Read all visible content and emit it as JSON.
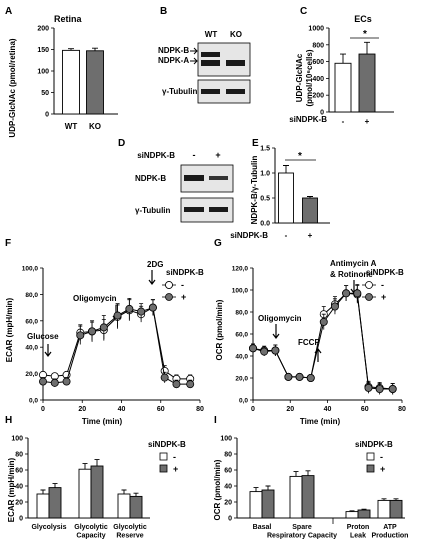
{
  "colors": {
    "white_bar": "#ffffff",
    "gray_bar": "#6e6e6e",
    "band": "#1a1a1a",
    "open_circle": "#ffffff",
    "filled_circle": "#6e6e6e"
  },
  "panels": {
    "A": {
      "letter": "A",
      "title": "Retina"
    },
    "B": {
      "letter": "B",
      "lane1": "WT",
      "lane2": "KO",
      "band_top": "NDPK-B",
      "band_mid": "NDPK-A",
      "band_bottom": "γ-Tubulin"
    },
    "C": {
      "letter": "C",
      "title": "ECs",
      "sig": "*",
      "group": "siNDPK-B"
    },
    "D": {
      "letter": "D",
      "group": "siNDPK-B",
      "lane1": "-",
      "lane2": "+",
      "band_top": "NDPK-B",
      "band_bottom": "γ-Tubulin"
    },
    "E": {
      "letter": "E",
      "sig": "*",
      "group": "siNDPK-B"
    },
    "F": {
      "letter": "F",
      "ann_glucose": "Glucose",
      "ann_oligo": "Oligomycin",
      "ann_2dg": "2DG",
      "legend_title": "siNDPK-B",
      "legend_minus": "-",
      "legend_plus": "+"
    },
    "G": {
      "letter": "G",
      "ann_oligo": "Oligomycin",
      "ann_fccp": "FCCP",
      "ann_aa1": "Antimycin A",
      "ann_aa2": "& Rotinone",
      "legend_title": "siNDPK-B",
      "legend_minus": "-",
      "legend_plus": "+"
    },
    "H": {
      "letter": "H",
      "legend_title": "siNDPK-B",
      "legend_minus": "-",
      "legend_plus": "+"
    },
    "I": {
      "letter": "I",
      "legend_title": "siNDPK-B",
      "legend_minus": "-",
      "legend_plus": "+"
    }
  },
  "chart_data": [
    {
      "id": "A",
      "type": "bar",
      "title": "Retina",
      "ylabel": "UDP-GlcNAc (pmol/retina)",
      "categories": [
        "WT",
        "KO"
      ],
      "values": [
        148,
        147
      ],
      "errors": [
        4,
        6
      ],
      "ylim": [
        0,
        200
      ],
      "yticks": [
        "0",
        "50",
        "100",
        "150",
        "200"
      ]
    },
    {
      "id": "C",
      "type": "bar",
      "title": "ECs",
      "ylabel": "UDP-GlcNAc",
      "ylabel2": "(pmol/10⁶cells)",
      "categories": [
        "-",
        "+"
      ],
      "values": [
        580,
        690
      ],
      "errors": [
        110,
        140
      ],
      "ylim": [
        0,
        1000
      ],
      "yticks": [
        "0",
        "200",
        "400",
        "600",
        "800",
        "1000"
      ]
    },
    {
      "id": "E",
      "type": "bar",
      "ylabel": "NDPK-B/γ-Tubulin",
      "categories": [
        "-",
        "+"
      ],
      "values": [
        1.0,
        0.5
      ],
      "errors": [
        0.15,
        0.03
      ],
      "ylim": [
        0,
        1.5
      ],
      "yticks": [
        "0.0",
        "0.5",
        "1.0",
        "1.5"
      ]
    },
    {
      "id": "F",
      "type": "line",
      "xlabel": "Time (min)",
      "ylabel": "ECAR (mpH/min)",
      "xlim": [
        0,
        80
      ],
      "ylim": [
        0,
        100
      ],
      "xticks": [
        "0",
        "20",
        "40",
        "60",
        "80"
      ],
      "yticks": [
        "0,0",
        "20,0",
        "40,0",
        "60,0",
        "80,0",
        "100,0"
      ],
      "series": [
        {
          "name": "-",
          "x": [
            0,
            6,
            12,
            19,
            25,
            31,
            38,
            44,
            50,
            56,
            62,
            68,
            75
          ],
          "y": [
            19,
            18,
            19,
            51,
            52,
            53,
            63,
            68,
            65,
            70,
            22,
            16,
            16
          ],
          "err": [
            2,
            2,
            2,
            6,
            7,
            8,
            9,
            8,
            6,
            6,
            4,
            3,
            3
          ]
        },
        {
          "name": "+",
          "x": [
            0,
            6,
            12,
            19,
            25,
            31,
            38,
            44,
            50,
            56,
            62,
            68,
            75
          ],
          "y": [
            14,
            13,
            14,
            49,
            52,
            55,
            64,
            69,
            67,
            70,
            17,
            12,
            12
          ],
          "err": [
            3,
            3,
            3,
            7,
            8,
            9,
            9,
            8,
            6,
            6,
            4,
            3,
            3
          ]
        }
      ]
    },
    {
      "id": "G",
      "type": "line",
      "xlabel": "Time (min)",
      "ylabel": "OCR (pmol/min)",
      "xlim": [
        0,
        80
      ],
      "ylim": [
        0,
        120
      ],
      "xticks": [
        "0",
        "20",
        "40",
        "60",
        "80"
      ],
      "yticks": [
        "0,0",
        "20,0",
        "40,0",
        "60,0",
        "80,0",
        "100,0",
        "120,0"
      ],
      "series": [
        {
          "name": "-",
          "x": [
            0,
            6,
            12,
            19,
            25,
            31,
            38,
            44,
            50,
            56,
            62,
            68,
            75
          ],
          "y": [
            47,
            45,
            45,
            21,
            21,
            20,
            78,
            87,
            97,
            96,
            12,
            11,
            10
          ],
          "err": [
            4,
            4,
            5,
            2,
            2,
            2,
            7,
            7,
            7,
            8,
            5,
            5,
            5
          ]
        },
        {
          "name": "+",
          "x": [
            0,
            6,
            12,
            19,
            25,
            31,
            38,
            44,
            50,
            56,
            62,
            68,
            75
          ],
          "y": [
            47,
            44,
            45,
            21,
            21,
            20,
            71,
            85,
            97,
            97,
            11,
            10,
            10
          ],
          "err": [
            4,
            4,
            5,
            2,
            2,
            2,
            7,
            7,
            7,
            8,
            5,
            5,
            5
          ]
        }
      ]
    },
    {
      "id": "H",
      "type": "bar",
      "ylabel": "ECAR (mpH/min)",
      "categories": [
        "Glycolysis",
        "Glycolytic Capacity",
        "Glycolytic Reserve"
      ],
      "ylim": [
        0,
        100
      ],
      "yticks": [
        "0",
        "20",
        "40",
        "60",
        "80",
        "100"
      ],
      "series": [
        {
          "name": "-",
          "values": [
            30,
            61,
            30
          ],
          "errors": [
            5,
            7,
            5
          ]
        },
        {
          "name": "+",
          "values": [
            38,
            65,
            27
          ],
          "errors": [
            5,
            8,
            4
          ]
        }
      ]
    },
    {
      "id": "I",
      "type": "bar",
      "ylabel": "OCR (pmol/min)",
      "categories": [
        "Basal",
        "Spare Respiratory Capacity",
        "Proton Leak",
        "ATP Production"
      ],
      "ylim": [
        0,
        100
      ],
      "yticks": [
        "0",
        "20",
        "40",
        "60",
        "80",
        "100"
      ],
      "series": [
        {
          "name": "-",
          "values": [
            33,
            52,
            8,
            22
          ],
          "errors": [
            5,
            6,
            1,
            2
          ]
        },
        {
          "name": "+",
          "values": [
            35,
            53,
            10,
            22
          ],
          "errors": [
            5,
            6,
            1,
            2
          ]
        }
      ]
    }
  ]
}
